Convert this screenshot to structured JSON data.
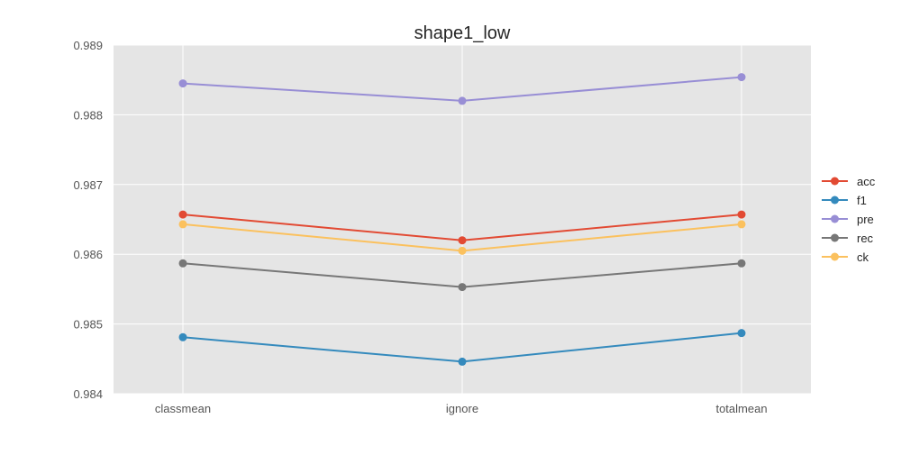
{
  "chart_data": {
    "type": "line",
    "title": "shape1_low",
    "xlabel": "",
    "ylabel": "",
    "categories": [
      "classmean",
      "ignore",
      "totalmean"
    ],
    "ylim": [
      0.984,
      0.989
    ],
    "yticks": [
      "0.984",
      "0.985",
      "0.986",
      "0.987",
      "0.988",
      "0.989"
    ],
    "grid": true,
    "legend_position": "right",
    "series": [
      {
        "name": "acc",
        "color": "#E24A33",
        "values": [
          0.98657,
          0.9862,
          0.98657
        ]
      },
      {
        "name": "f1",
        "color": "#348ABD",
        "values": [
          0.98481,
          0.98446,
          0.98487
        ]
      },
      {
        "name": "pre",
        "color": "#988ED5",
        "values": [
          0.98845,
          0.9882,
          0.98854
        ]
      },
      {
        "name": "rec",
        "color": "#777777",
        "values": [
          0.98587,
          0.98553,
          0.98587
        ]
      },
      {
        "name": "ck",
        "color": "#FBC15E",
        "values": [
          0.98643,
          0.98605,
          0.98643
        ]
      }
    ],
    "colors": {
      "plot_background": "#E5E5E5",
      "grid": "#FFFFFF"
    }
  }
}
